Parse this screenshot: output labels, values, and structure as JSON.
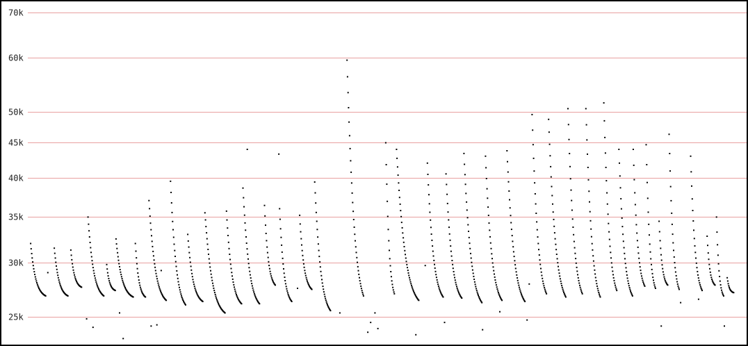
{
  "chart_data": {
    "type": "scatter",
    "title": "",
    "xlabel": "",
    "ylabel": "",
    "y_scale": "log",
    "ylim": [
      23000,
      71000
    ],
    "xlim": [
      0,
      100
    ],
    "grid": "horizontal",
    "legend": "none",
    "colors": {
      "points": "#000000",
      "grid": "#e8a0a0",
      "background": "#ffffff",
      "frame": "#000000"
    },
    "y_ticks": [
      {
        "value": 25000,
        "label": "25k"
      },
      {
        "value": 30000,
        "label": "30k"
      },
      {
        "value": 35000,
        "label": "35k"
      },
      {
        "value": 40000,
        "label": "40k"
      },
      {
        "value": 45000,
        "label": "45k"
      },
      {
        "value": 50000,
        "label": "50k"
      },
      {
        "value": 60000,
        "label": "60k"
      },
      {
        "value": 70000,
        "label": "70k"
      }
    ],
    "cycles": [
      {
        "x_start": 0.2,
        "x_end": 2.3,
        "y_start": 32000,
        "y_end": 26800
      },
      {
        "x_start": 3.5,
        "x_end": 5.4,
        "y_start": 31500,
        "y_end": 26800
      },
      {
        "x_start": 5.8,
        "x_end": 7.3,
        "y_start": 31300,
        "y_end": 27600
      },
      {
        "x_start": 8.2,
        "x_end": 10.4,
        "y_start": 35000,
        "y_end": 26800
      },
      {
        "x_start": 10.8,
        "x_end": 12.0,
        "y_start": 29800,
        "y_end": 27300
      },
      {
        "x_start": 12.1,
        "x_end": 14.5,
        "y_start": 32500,
        "y_end": 26700
      },
      {
        "x_start": 14.8,
        "x_end": 16.2,
        "y_start": 32000,
        "y_end": 26700
      },
      {
        "x_start": 16.7,
        "x_end": 19.1,
        "y_start": 37000,
        "y_end": 26400
      },
      {
        "x_start": 19.7,
        "x_end": 21.8,
        "y_start": 39500,
        "y_end": 26000
      },
      {
        "x_start": 22.1,
        "x_end": 24.2,
        "y_start": 33000,
        "y_end": 26300
      },
      {
        "x_start": 24.5,
        "x_end": 27.3,
        "y_start": 35500,
        "y_end": 25300
      },
      {
        "x_start": 27.5,
        "x_end": 29.6,
        "y_start": 35700,
        "y_end": 26100
      },
      {
        "x_start": 29.8,
        "x_end": 32.1,
        "y_start": 38600,
        "y_end": 26100
      },
      {
        "x_start": 32.8,
        "x_end": 34.3,
        "y_start": 36400,
        "y_end": 27800
      },
      {
        "x_start": 34.9,
        "x_end": 36.6,
        "y_start": 36000,
        "y_end": 26300
      },
      {
        "x_start": 37.7,
        "x_end": 39.4,
        "y_start": 35200,
        "y_end": 27400
      },
      {
        "x_start": 39.8,
        "x_end": 42.0,
        "y_start": 39400,
        "y_end": 25500
      },
      {
        "x_start": 44.3,
        "x_end": 46.6,
        "y_start": 59500,
        "y_end": 26800
      },
      {
        "x_start": 49.7,
        "x_end": 50.9,
        "y_start": 45000,
        "y_end": 27000
      },
      {
        "x_start": 51.2,
        "x_end": 54.3,
        "y_start": 44000,
        "y_end": 26400
      },
      {
        "x_start": 55.5,
        "x_end": 57.7,
        "y_start": 42000,
        "y_end": 26700
      },
      {
        "x_start": 58.1,
        "x_end": 60.3,
        "y_start": 40500,
        "y_end": 26600
      },
      {
        "x_start": 60.6,
        "x_end": 63.1,
        "y_start": 43400,
        "y_end": 26200
      },
      {
        "x_start": 63.6,
        "x_end": 65.9,
        "y_start": 43000,
        "y_end": 26400
      },
      {
        "x_start": 66.6,
        "x_end": 69.1,
        "y_start": 43800,
        "y_end": 26300
      },
      {
        "x_start": 70.1,
        "x_end": 72.1,
        "y_start": 49500,
        "y_end": 27000
      },
      {
        "x_start": 72.4,
        "x_end": 74.8,
        "y_start": 48700,
        "y_end": 26700
      },
      {
        "x_start": 75.1,
        "x_end": 77.1,
        "y_start": 50500,
        "y_end": 27000
      },
      {
        "x_start": 77.6,
        "x_end": 79.6,
        "y_start": 50500,
        "y_end": 26700
      },
      {
        "x_start": 80.1,
        "x_end": 81.9,
        "y_start": 51500,
        "y_end": 27300
      },
      {
        "x_start": 82.2,
        "x_end": 84.1,
        "y_start": 44000,
        "y_end": 26800
      },
      {
        "x_start": 84.2,
        "x_end": 85.8,
        "y_start": 44000,
        "y_end": 27700
      },
      {
        "x_start": 86.0,
        "x_end": 87.3,
        "y_start": 44700,
        "y_end": 27500
      },
      {
        "x_start": 87.8,
        "x_end": 89.0,
        "y_start": 34500,
        "y_end": 27800
      },
      {
        "x_start": 89.2,
        "x_end": 90.6,
        "y_start": 46300,
        "y_end": 27400
      },
      {
        "x_start": 92.2,
        "x_end": 93.8,
        "y_start": 43000,
        "y_end": 27300
      },
      {
        "x_start": 94.5,
        "x_end": 95.6,
        "y_start": 32800,
        "y_end": 27800
      },
      {
        "x_start": 95.8,
        "x_end": 96.8,
        "y_start": 35000,
        "y_end": 26800
      },
      {
        "x_start": 97.3,
        "x_end": 98.2,
        "y_start": 28500,
        "y_end": 27100
      }
    ],
    "outliers": [
      {
        "x": 2.6,
        "y": 29000
      },
      {
        "x": 8.0,
        "y": 24800
      },
      {
        "x": 8.9,
        "y": 24100
      },
      {
        "x": 12.6,
        "y": 25300
      },
      {
        "x": 13.1,
        "y": 23200
      },
      {
        "x": 17.0,
        "y": 24200
      },
      {
        "x": 17.8,
        "y": 24300
      },
      {
        "x": 18.4,
        "y": 29200
      },
      {
        "x": 22.7,
        "y": 22800
      },
      {
        "x": 30.4,
        "y": 44000
      },
      {
        "x": 34.8,
        "y": 43300
      },
      {
        "x": 37.4,
        "y": 27500
      },
      {
        "x": 43.3,
        "y": 25300
      },
      {
        "x": 47.2,
        "y": 23700
      },
      {
        "x": 47.6,
        "y": 24500
      },
      {
        "x": 48.2,
        "y": 25300
      },
      {
        "x": 48.6,
        "y": 24000
      },
      {
        "x": 53.9,
        "y": 23500
      },
      {
        "x": 55.2,
        "y": 29700
      },
      {
        "x": 55.1,
        "y": 22900
      },
      {
        "x": 57.9,
        "y": 24500
      },
      {
        "x": 63.2,
        "y": 23900
      },
      {
        "x": 65.6,
        "y": 25400
      },
      {
        "x": 66.2,
        "y": 22600
      },
      {
        "x": 69.4,
        "y": 24700
      },
      {
        "x": 69.7,
        "y": 27900
      },
      {
        "x": 88.1,
        "y": 24200
      },
      {
        "x": 90.8,
        "y": 26200
      },
      {
        "x": 93.3,
        "y": 26500
      },
      {
        "x": 96.9,
        "y": 24200
      }
    ]
  }
}
